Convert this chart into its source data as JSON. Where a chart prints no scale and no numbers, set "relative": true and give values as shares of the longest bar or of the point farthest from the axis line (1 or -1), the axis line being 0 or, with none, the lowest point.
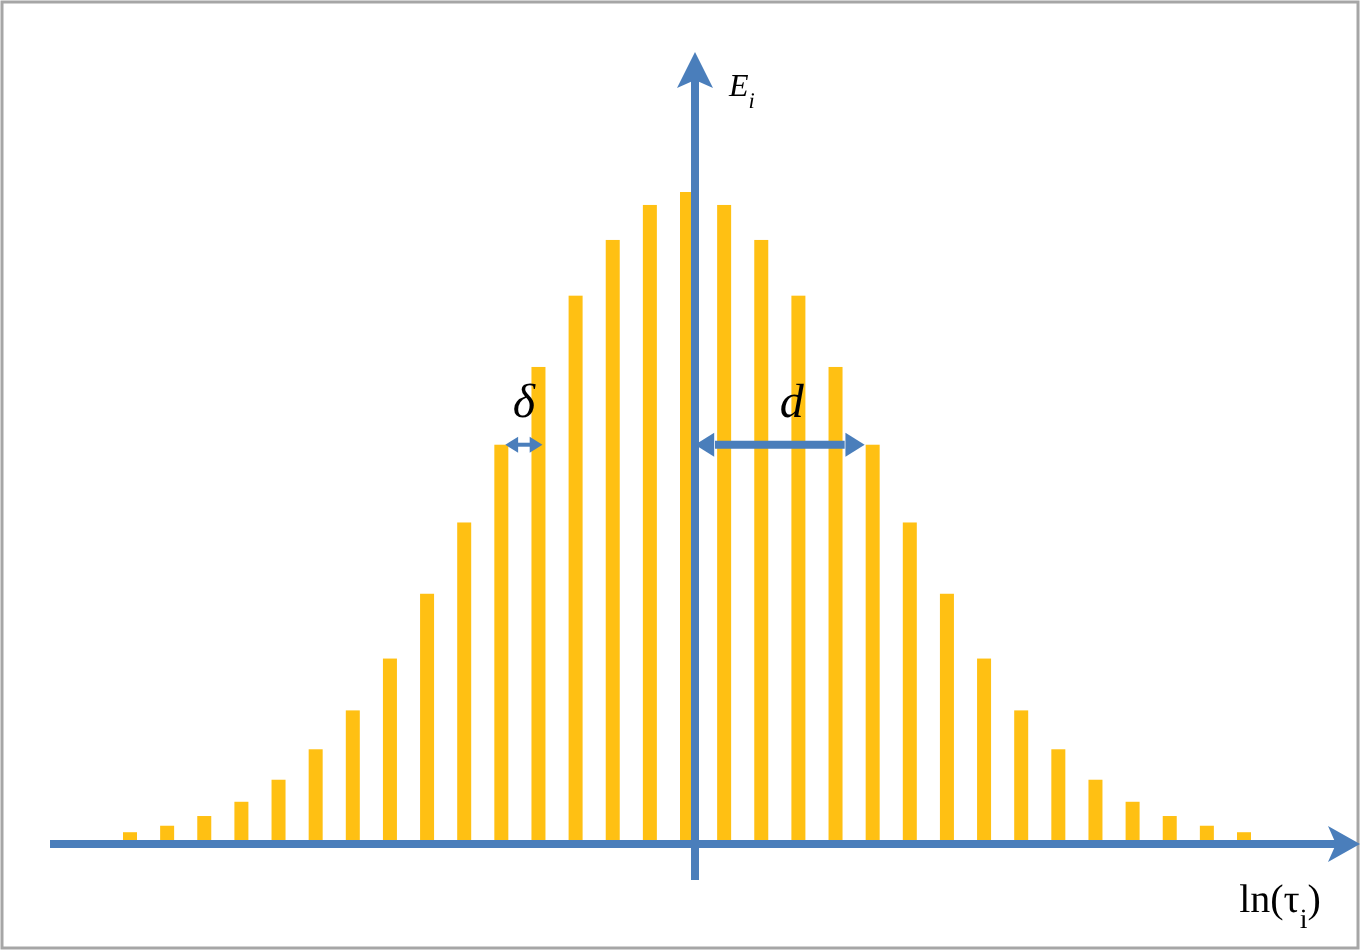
{
  "chart_data": {
    "type": "bar",
    "relative": true,
    "xlabel": "ln(τ$_{i}$)",
    "ylabel": "E$_{i}$",
    "color": "#ffc013",
    "categories": [
      null,
      null,
      null,
      null,
      null,
      null,
      null,
      null,
      null,
      null,
      null,
      null,
      null,
      null,
      null,
      null,
      null,
      null,
      null,
      null,
      null,
      null,
      null,
      null,
      null,
      null,
      null,
      null,
      null,
      null,
      null
    ],
    "values": [
      0.012,
      0.022,
      0.037,
      0.059,
      0.093,
      0.14,
      0.2,
      0.28,
      0.38,
      0.49,
      0.61,
      0.73,
      0.84,
      0.926,
      0.98,
      1,
      0.98,
      0.926,
      0.84,
      0.73,
      0.61,
      0.49,
      0.38,
      0.28,
      0.2,
      0.14,
      0.093,
      0.059,
      0.037,
      0.022,
      0.012
    ],
    "annotations": [
      "δ",
      "d"
    ]
  }
}
